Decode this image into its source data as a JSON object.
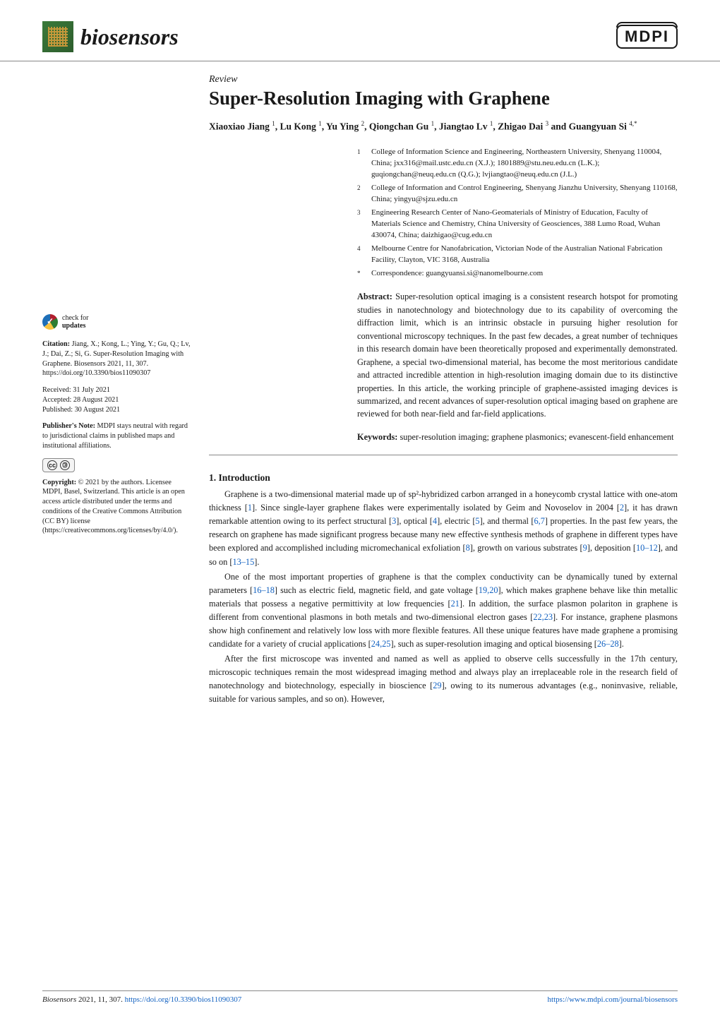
{
  "header": {
    "journal_name": "biosensors",
    "publisher_logo": "MDPI"
  },
  "left_sidebar": {
    "updates_line1": "check for",
    "updates_line2": "updates",
    "citation_label": "Citation:",
    "citation_text": "Jiang, X.; Kong, L.; Ying, Y.; Gu, Q.; Lv, J.; Dai, Z.; Si, G. Super-Resolution Imaging with Graphene. Biosensors 2021, 11, 307. https://doi.org/10.3390/bios11090307",
    "received_label": "Received:",
    "received_value": "31 July 2021",
    "accepted_label": "Accepted:",
    "accepted_value": "28 August 2021",
    "published_label": "Published:",
    "published_value": "30 August 2021",
    "pubnote_label": "Publisher's Note:",
    "pubnote_text": "MDPI stays neutral with regard to jurisdictional claims in published maps and institutional affiliations.",
    "copyright_label": "Copyright:",
    "copyright_text": "© 2021 by the authors. Licensee MDPI, Basel, Switzerland. This article is an open access article distributed under the terms and conditions of the Creative Commons Attribution (CC BY) license (https://creativecommons.org/licenses/by/4.0/)."
  },
  "article": {
    "type": "Review",
    "title": "Super-Resolution Imaging with Graphene",
    "authors_html": "Xiaoxiao Jiang <sup>1</sup>, Lu Kong <sup>1</sup>, Yu Ying <sup>2</sup>, Qiongchan Gu <sup>1</sup>, Jiangtao Lv <sup>1</sup>, Zhigao Dai <sup>3</sup> and Guangyuan Si <sup>4,*</sup>",
    "affiliations": [
      {
        "num": "1",
        "text": "College of Information Science and Engineering, Northeastern University, Shenyang 110004, China; jxx316@mail.ustc.edu.cn (X.J.); 1801889@stu.neu.edu.cn (L.K.); guqiongchan@neuq.edu.cn (Q.G.); lvjiangtao@neuq.edu.cn (J.L.)"
      },
      {
        "num": "2",
        "text": "College of Information and Control Engineering, Shenyang Jianzhu University, Shenyang 110168, China; yingyu@sjzu.edu.cn"
      },
      {
        "num": "3",
        "text": "Engineering Research Center of Nano-Geomaterials of Ministry of Education, Faculty of Materials Science and Chemistry, China University of Geosciences, 388 Lumo Road, Wuhan 430074, China; daizhigao@cug.edu.cn"
      },
      {
        "num": "4",
        "text": "Melbourne Centre for Nanofabrication, Victorian Node of the Australian National Fabrication Facility, Clayton, VIC 3168, Australia"
      },
      {
        "num": "*",
        "text": "Correspondence: guangyuansi.si@nanomelbourne.com"
      }
    ],
    "abstract_label": "Abstract:",
    "abstract_text": "Super-resolution optical imaging is a consistent research hotspot for promoting studies in nanotechnology and biotechnology due to its capability of overcoming the diffraction limit, which is an intrinsic obstacle in pursuing higher resolution for conventional microscopy techniques. In the past few decades, a great number of techniques in this research domain have been theoretically proposed and experimentally demonstrated. Graphene, a special two-dimensional material, has become the most meritorious candidate and attracted incredible attention in high-resolution imaging domain due to its distinctive properties. In this article, the working principle of graphene-assisted imaging devices is summarized, and recent advances of super-resolution optical imaging based on graphene are reviewed for both near-field and far-field applications.",
    "keywords_label": "Keywords:",
    "keywords_text": "super-resolution imaging; graphene plasmonics; evanescent-field enhancement",
    "section1_heading": "1. Introduction",
    "para1": "Graphene is a two-dimensional material made up of sp²-hybridized carbon arranged in a honeycomb crystal lattice with one-atom thickness [1]. Since single-layer graphene flakes were experimentally isolated by Geim and Novoselov in 2004 [2], it has drawn remarkable attention owing to its perfect structural [3], optical [4], electric [5], and thermal [6,7] properties. In the past few years, the research on graphene has made significant progress because many new effective synthesis methods of graphene in different types have been explored and accomplished including micromechanical exfoliation [8], growth on various substrates [9], deposition [10–12], and so on [13–15].",
    "para2": "One of the most important properties of graphene is that the complex conductivity can be dynamically tuned by external parameters [16–18] such as electric field, magnetic field, and gate voltage [19,20], which makes graphene behave like thin metallic materials that possess a negative permittivity at low frequencies [21]. In addition, the surface plasmon polariton in graphene is different from conventional plasmons in both metals and two-dimensional electron gases [22,23]. For instance, graphene plasmons show high confinement and relatively low loss with more flexible features. All these unique features have made graphene a promising candidate for a variety of crucial applications [24,25], such as super-resolution imaging and optical biosensing [26–28].",
    "para3": "After the first microscope was invented and named as well as applied to observe cells successfully in the 17th century, microscopic techniques remain the most widespread imaging method and always play an irreplaceable role in the research field of nanotechnology and biotechnology, especially in bioscience [29], owing to its numerous advantages (e.g., noninvasive, reliable, suitable for various samples, and so on). However,"
  },
  "footer": {
    "left": "Biosensors 2021, 11, 307. https://doi.org/10.3390/bios11090307",
    "right": "https://www.mdpi.com/journal/biosensors"
  },
  "colors": {
    "link": "#1060c0",
    "rule": "#888888",
    "text": "#1a1a1a",
    "logo_green": "#2d5d2d",
    "logo_accent": "#e8a33c",
    "background": "#ffffff"
  },
  "typography": {
    "body_fontsize_pt": 10,
    "title_fontsize_pt": 20,
    "journal_fontsize_pt": 24,
    "sidebar_fontsize_pt": 8,
    "font_family": "Palatino / serif"
  }
}
